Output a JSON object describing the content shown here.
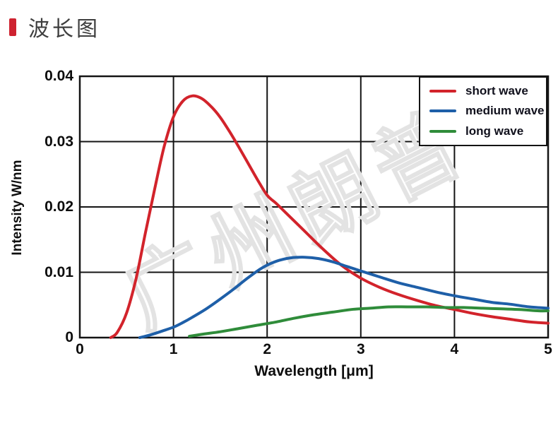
{
  "header": {
    "title": "波长图",
    "marker_color": "#ce2330"
  },
  "watermark": {
    "text": "广州朗普"
  },
  "chart_data": {
    "type": "line",
    "title": "",
    "xlabel": "Wavelength [μm]",
    "ylabel": "Intensity W/nm",
    "xlim": [
      0,
      5
    ],
    "ylim": [
      0,
      0.04
    ],
    "xticks": {
      "values": [
        0,
        1,
        2,
        3,
        4,
        5
      ],
      "labels": [
        "0",
        "1",
        "2",
        "3",
        "4",
        "5"
      ]
    },
    "yticks": {
      "values": [
        0,
        0.01,
        0.02,
        0.03,
        0.04
      ],
      "labels": [
        "0",
        "0.01",
        "0.02",
        "0.03",
        "0.04"
      ]
    },
    "grid": true,
    "grid_color": "#141414",
    "legend_position": "top-right",
    "series": [
      {
        "name": "short wave",
        "color": "#d2232b",
        "points": [
          [
            0.33,
            0
          ],
          [
            0.4,
            0.0008
          ],
          [
            0.5,
            0.0038
          ],
          [
            0.6,
            0.009
          ],
          [
            0.7,
            0.016
          ],
          [
            0.8,
            0.0228
          ],
          [
            0.9,
            0.0292
          ],
          [
            1.0,
            0.0338
          ],
          [
            1.1,
            0.0362
          ],
          [
            1.2,
            0.037
          ],
          [
            1.3,
            0.0366
          ],
          [
            1.4,
            0.0354
          ],
          [
            1.5,
            0.0337
          ],
          [
            1.6,
            0.0315
          ],
          [
            1.7,
            0.0291
          ],
          [
            1.8,
            0.0266
          ],
          [
            1.9,
            0.0241
          ],
          [
            2.0,
            0.0218
          ],
          [
            2.1,
            0.0205
          ],
          [
            2.2,
            0.0191
          ],
          [
            2.4,
            0.0163
          ],
          [
            2.6,
            0.0135
          ],
          [
            2.8,
            0.011
          ],
          [
            3.0,
            0.0091
          ],
          [
            3.2,
            0.0077
          ],
          [
            3.4,
            0.0066
          ],
          [
            3.6,
            0.0057
          ],
          [
            3.8,
            0.0049
          ],
          [
            4.0,
            0.0043
          ],
          [
            4.2,
            0.0037
          ],
          [
            4.4,
            0.0032
          ],
          [
            4.6,
            0.0028
          ],
          [
            4.8,
            0.0024
          ],
          [
            5.0,
            0.0022
          ]
        ]
      },
      {
        "name": "medium wave",
        "color": "#1e5fa8",
        "points": [
          [
            0.64,
            0
          ],
          [
            0.75,
            0.0004
          ],
          [
            0.9,
            0.0011
          ],
          [
            1.0,
            0.0016
          ],
          [
            1.1,
            0.0023
          ],
          [
            1.2,
            0.0031
          ],
          [
            1.35,
            0.0044
          ],
          [
            1.5,
            0.0059
          ],
          [
            1.65,
            0.0075
          ],
          [
            1.8,
            0.0092
          ],
          [
            1.95,
            0.0107
          ],
          [
            2.1,
            0.0117
          ],
          [
            2.25,
            0.0122
          ],
          [
            2.4,
            0.0123
          ],
          [
            2.55,
            0.0121
          ],
          [
            2.7,
            0.0116
          ],
          [
            2.85,
            0.0109
          ],
          [
            3.0,
            0.0102
          ],
          [
            3.2,
            0.0093
          ],
          [
            3.4,
            0.0084
          ],
          [
            3.6,
            0.0077
          ],
          [
            3.8,
            0.007
          ],
          [
            4.0,
            0.0064
          ],
          [
            4.2,
            0.0059
          ],
          [
            4.4,
            0.0054
          ],
          [
            4.6,
            0.0051
          ],
          [
            4.8,
            0.0047
          ],
          [
            5.0,
            0.0045
          ]
        ]
      },
      {
        "name": "long wave",
        "color": "#2f8c3a",
        "points": [
          [
            1.17,
            0.0002
          ],
          [
            1.3,
            0.0005
          ],
          [
            1.5,
            0.0009
          ],
          [
            1.7,
            0.0014
          ],
          [
            1.9,
            0.0019
          ],
          [
            2.1,
            0.0024
          ],
          [
            2.3,
            0.003
          ],
          [
            2.5,
            0.0035
          ],
          [
            2.7,
            0.0039
          ],
          [
            2.9,
            0.0043
          ],
          [
            3.1,
            0.0045
          ],
          [
            3.3,
            0.0047
          ],
          [
            3.5,
            0.0047
          ],
          [
            3.7,
            0.0047
          ],
          [
            3.9,
            0.0046
          ],
          [
            4.1,
            0.0046
          ],
          [
            4.3,
            0.0045
          ],
          [
            4.5,
            0.0044
          ],
          [
            4.7,
            0.0043
          ],
          [
            4.9,
            0.0041
          ],
          [
            5.0,
            0.0041
          ]
        ]
      }
    ]
  }
}
